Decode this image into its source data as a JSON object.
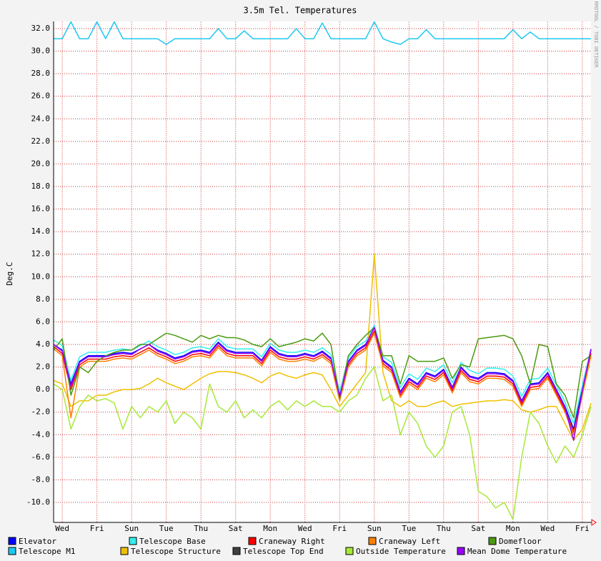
{
  "chart_data": {
    "type": "line",
    "title": "3.5m Tel. Temperatures",
    "y_label": "Deg.C",
    "watermark": "RRDTOOL / TOBI OETIKER",
    "grid": true,
    "xlim": [
      0,
      31
    ],
    "xticks": [
      {
        "value": 0.5,
        "label": "Wed"
      },
      {
        "value": 2.5,
        "label": "Fri"
      },
      {
        "value": 4.5,
        "label": "Sun"
      },
      {
        "value": 6.5,
        "label": "Tue"
      },
      {
        "value": 8.5,
        "label": "Thu"
      },
      {
        "value": 10.5,
        "label": "Sat"
      },
      {
        "value": 12.5,
        "label": "Mon"
      },
      {
        "value": 14.5,
        "label": "Wed"
      },
      {
        "value": 16.5,
        "label": "Fri"
      },
      {
        "value": 18.5,
        "label": "Sun"
      },
      {
        "value": 20.5,
        "label": "Tue"
      },
      {
        "value": 22.5,
        "label": "Thu"
      },
      {
        "value": 24.5,
        "label": "Sat"
      },
      {
        "value": 26.5,
        "label": "Mon"
      },
      {
        "value": 28.5,
        "label": "Wed"
      },
      {
        "value": 30.5,
        "label": "Fri"
      }
    ],
    "ylim": [
      -11.7,
      32.6
    ],
    "yticks": [
      {
        "value": 32,
        "label": "32.0"
      },
      {
        "value": 30,
        "label": "30.0"
      },
      {
        "value": 28,
        "label": "28.0"
      },
      {
        "value": 26,
        "label": "26.0"
      },
      {
        "value": 24,
        "label": "24.0"
      },
      {
        "value": 22,
        "label": "22.0"
      },
      {
        "value": 20,
        "label": "20.0"
      },
      {
        "value": 18,
        "label": "18.0"
      },
      {
        "value": 16,
        "label": "16.0"
      },
      {
        "value": 14,
        "label": "14.0"
      },
      {
        "value": 12,
        "label": "12.0"
      },
      {
        "value": 10,
        "label": "10.0"
      },
      {
        "value": 8,
        "label": "8.0"
      },
      {
        "value": 6,
        "label": "6.0"
      },
      {
        "value": 4,
        "label": "4.0"
      },
      {
        "value": 2,
        "label": "2.0"
      },
      {
        "value": 0,
        "label": "0.0"
      },
      {
        "value": -2,
        "label": "-2.0"
      },
      {
        "value": -4,
        "label": "-4.0"
      },
      {
        "value": -6,
        "label": "-6.0"
      },
      {
        "value": -8,
        "label": "-8.0"
      },
      {
        "value": -10,
        "label": "-10.0"
      }
    ],
    "x": [
      0,
      0.5,
      1,
      1.5,
      2,
      2.5,
      3,
      3.5,
      4,
      4.5,
      5,
      5.5,
      6,
      6.5,
      7,
      7.5,
      8,
      8.5,
      9,
      9.5,
      10,
      10.5,
      11,
      11.5,
      12,
      12.5,
      13,
      13.5,
      14,
      14.5,
      15,
      15.5,
      16,
      16.5,
      17,
      17.5,
      18,
      18.5,
      19,
      19.5,
      20,
      20.5,
      21,
      21.5,
      22,
      22.5,
      23,
      23.5,
      24,
      24.5,
      25,
      25.5,
      26,
      26.5,
      27,
      27.5,
      28,
      28.5,
      29,
      29.5,
      30,
      30.5,
      31
    ],
    "series": [
      {
        "name": "Elevator",
        "color": "#0000ff",
        "values": [
          4.0,
          3.5,
          0.5,
          2.5,
          3.0,
          3.0,
          3.0,
          3.2,
          3.3,
          3.2,
          3.6,
          4.0,
          3.5,
          3.2,
          2.8,
          3.0,
          3.4,
          3.5,
          3.3,
          4.2,
          3.5,
          3.3,
          3.3,
          3.3,
          2.6,
          3.8,
          3.2,
          3.0,
          3.0,
          3.2,
          3.0,
          3.4,
          2.8,
          -0.5,
          2.5,
          3.5,
          4.0,
          5.5,
          2.6,
          2.0,
          -0.2,
          1.0,
          0.5,
          1.5,
          1.2,
          1.8,
          0.2,
          2.0,
          1.2,
          1.0,
          1.5,
          1.5,
          1.4,
          0.8,
          -1.0,
          0.5,
          0.6,
          1.5,
          0.0,
          -1.5,
          -3.5,
          0.0,
          3.5
        ]
      },
      {
        "name": "Telescope M1",
        "color": "#1ec8f0",
        "values": [
          31.1,
          31.1,
          32.6,
          31.1,
          31.1,
          32.6,
          31.1,
          32.6,
          31.1,
          31.1,
          31.1,
          31.1,
          31.1,
          30.6,
          31.1,
          31.1,
          31.1,
          31.1,
          31.1,
          32.0,
          31.1,
          31.1,
          31.8,
          31.1,
          31.1,
          31.1,
          31.1,
          31.1,
          32.0,
          31.1,
          31.1,
          32.5,
          31.1,
          31.1,
          31.1,
          31.1,
          31.1,
          32.6,
          31.1,
          30.8,
          30.6,
          31.1,
          31.1,
          31.9,
          31.1,
          31.1,
          31.1,
          31.1,
          31.1,
          31.1,
          31.1,
          31.1,
          31.1,
          31.9,
          31.1,
          31.7,
          31.1,
          31.1,
          31.1,
          31.1,
          31.1,
          31.1,
          31.1
        ]
      },
      {
        "name": "Telescope Base",
        "color": "#33eeee",
        "values": [
          4.4,
          3.9,
          0.8,
          2.9,
          3.3,
          3.3,
          3.3,
          3.5,
          3.6,
          3.5,
          3.9,
          4.3,
          3.8,
          3.5,
          3.1,
          3.3,
          3.7,
          3.8,
          3.6,
          4.5,
          3.8,
          3.6,
          3.6,
          3.6,
          2.9,
          4.1,
          3.5,
          3.3,
          3.3,
          3.5,
          3.3,
          3.7,
          3.1,
          -0.2,
          2.8,
          3.8,
          4.3,
          5.7,
          2.9,
          2.4,
          0.2,
          1.4,
          0.9,
          1.9,
          1.6,
          2.2,
          0.6,
          2.4,
          1.7,
          1.4,
          1.9,
          1.9,
          1.8,
          1.2,
          -0.6,
          0.9,
          1.0,
          1.9,
          0.4,
          -1.1,
          -3.0,
          0.4,
          3.6
        ]
      },
      {
        "name": "Telescope Structure",
        "color": "#f0c000",
        "values": [
          0.8,
          0.5,
          -1.5,
          -1.0,
          -1.0,
          -0.5,
          -0.5,
          -0.2,
          0.0,
          0.0,
          0.1,
          0.5,
          1.0,
          0.6,
          0.3,
          0.0,
          0.5,
          1.0,
          1.4,
          1.6,
          1.6,
          1.5,
          1.3,
          1.0,
          0.6,
          1.2,
          1.5,
          1.2,
          1.0,
          1.3,
          1.5,
          1.3,
          0.0,
          -1.5,
          -0.5,
          0.5,
          1.5,
          12.0,
          1.5,
          -1.0,
          -1.5,
          -1.0,
          -1.5,
          -1.5,
          -1.2,
          -1.0,
          -1.5,
          -1.3,
          -1.2,
          -1.1,
          -1.0,
          -1.0,
          -0.9,
          -1.0,
          -1.8,
          -2.0,
          -1.8,
          -1.5,
          -1.5,
          -3.0,
          -4.5,
          -3.5,
          -1.2
        ]
      },
      {
        "name": "Craneway Right",
        "color": "#ff0000",
        "values": [
          3.8,
          3.2,
          0.0,
          2.2,
          2.7,
          2.7,
          2.7,
          2.9,
          3.0,
          2.9,
          3.3,
          3.7,
          3.2,
          2.9,
          2.5,
          2.7,
          3.1,
          3.2,
          3.0,
          3.9,
          3.2,
          3.0,
          3.0,
          3.0,
          2.3,
          3.5,
          2.9,
          2.7,
          2.7,
          2.9,
          2.7,
          3.1,
          2.5,
          -0.8,
          2.2,
          3.2,
          3.7,
          5.2,
          2.3,
          1.7,
          -0.5,
          0.7,
          0.2,
          1.2,
          0.9,
          1.5,
          -0.1,
          1.7,
          0.9,
          0.7,
          1.2,
          1.2,
          1.1,
          0.5,
          -1.3,
          0.2,
          0.3,
          1.2,
          -0.3,
          -1.8,
          -3.8,
          -0.3,
          3.2
        ]
      },
      {
        "name": "Telescope Top End",
        "color": "#404040",
        "values": [
          null,
          null,
          null,
          null,
          null,
          null,
          null,
          null,
          null,
          null,
          null,
          null,
          null,
          null,
          null,
          null,
          null,
          null,
          null,
          null,
          null,
          null,
          null,
          null,
          null,
          null,
          null,
          null,
          null,
          null,
          null,
          null,
          null,
          null,
          null,
          null,
          null,
          null,
          null,
          null,
          null,
          null,
          null,
          null,
          null,
          null,
          null,
          null,
          null,
          null,
          null,
          null,
          null,
          null,
          null,
          null,
          null,
          null,
          null,
          null,
          null,
          null,
          null
        ]
      },
      {
        "name": "Craneway Left",
        "color": "#ff8000",
        "values": [
          3.6,
          3.0,
          -2.5,
          2.0,
          2.5,
          2.5,
          2.5,
          2.7,
          2.8,
          2.7,
          3.1,
          3.5,
          3.0,
          2.7,
          2.3,
          2.5,
          2.9,
          3.0,
          2.8,
          3.7,
          3.0,
          2.8,
          2.8,
          2.8,
          2.1,
          3.3,
          2.7,
          2.5,
          2.5,
          2.7,
          2.5,
          2.9,
          2.3,
          -1.0,
          2.0,
          3.0,
          3.5,
          5.0,
          2.1,
          1.5,
          -0.7,
          0.5,
          0.0,
          1.0,
          0.7,
          1.3,
          -0.3,
          1.5,
          0.7,
          0.5,
          1.0,
          1.0,
          0.9,
          0.3,
          -1.5,
          0.0,
          0.1,
          1.0,
          -0.5,
          -2.0,
          -4.0,
          -0.5,
          3.0
        ]
      },
      {
        "name": "Outside Temperature",
        "color": "#a8e838",
        "values": [
          0.5,
          0.0,
          -3.5,
          -1.5,
          -0.5,
          -1.0,
          -0.8,
          -1.2,
          -3.5,
          -1.5,
          -2.5,
          -1.5,
          -2.0,
          -1.0,
          -3.0,
          -2.0,
          -2.5,
          -3.5,
          0.5,
          -1.5,
          -2.0,
          -1.0,
          -2.5,
          -1.8,
          -2.5,
          -1.5,
          -1.0,
          -1.8,
          -1.0,
          -1.5,
          -1.0,
          -1.5,
          -1.5,
          -2.0,
          -1.0,
          -0.5,
          1.0,
          2.0,
          -1.0,
          -0.5,
          -4.0,
          -2.0,
          -3.0,
          -5.0,
          -6.0,
          -5.0,
          -2.0,
          -1.5,
          -4.0,
          -9.0,
          -9.5,
          -10.5,
          -10.0,
          -11.5,
          -6.0,
          -2.0,
          -3.0,
          -5.0,
          -6.5,
          -5.0,
          -6.0,
          -4.0,
          -1.5
        ]
      },
      {
        "name": "Domefloor",
        "color": "#4a9a10",
        "values": [
          3.5,
          4.5,
          -0.5,
          2.0,
          1.5,
          2.5,
          3.0,
          3.3,
          3.5,
          3.5,
          4.0,
          4.0,
          4.5,
          5.0,
          4.8,
          4.5,
          4.2,
          4.8,
          4.5,
          4.8,
          4.6,
          4.6,
          4.4,
          4.0,
          3.8,
          4.5,
          3.8,
          4.0,
          4.2,
          4.5,
          4.3,
          5.0,
          4.0,
          -0.8,
          3.0,
          4.0,
          4.8,
          5.5,
          3.0,
          3.0,
          0.5,
          3.0,
          2.5,
          2.5,
          2.5,
          2.8,
          1.0,
          2.2,
          2.0,
          4.5,
          4.6,
          4.7,
          4.8,
          4.5,
          3.0,
          0.5,
          4.0,
          3.8,
          0.5,
          -0.5,
          -2.5,
          2.5,
          3.0
        ]
      },
      {
        "name": "Mean Dome Temperature",
        "color": "#9900ff",
        "values": [
          4.0,
          3.4,
          0.3,
          2.4,
          2.9,
          2.9,
          2.9,
          3.1,
          3.2,
          3.1,
          3.6,
          4.0,
          3.4,
          3.1,
          2.7,
          2.9,
          3.3,
          3.4,
          3.2,
          4.1,
          3.4,
          3.2,
          3.2,
          3.2,
          2.5,
          3.7,
          3.1,
          2.9,
          2.9,
          3.1,
          2.9,
          3.3,
          2.7,
          -0.6,
          2.4,
          3.4,
          3.9,
          5.5,
          2.5,
          1.9,
          -0.3,
          0.9,
          0.4,
          1.4,
          1.1,
          1.7,
          0.1,
          1.9,
          1.1,
          0.9,
          1.4,
          1.4,
          1.3,
          0.7,
          -1.1,
          0.4,
          0.5,
          1.4,
          -0.1,
          -1.6,
          -4.5,
          -0.1,
          3.6
        ]
      }
    ]
  }
}
